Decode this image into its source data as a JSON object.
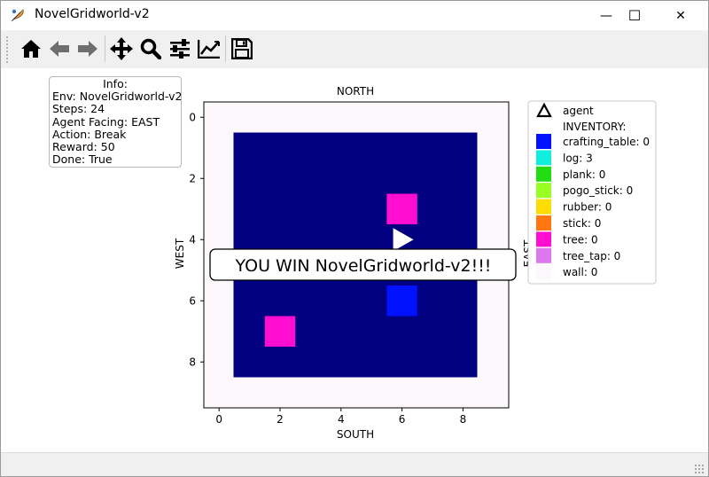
{
  "window": {
    "title": "NovelGridworld-v2",
    "controls": {
      "minimize": "—",
      "maximize": "☐",
      "close": "✕"
    }
  },
  "toolbar": {
    "tools": [
      "home-icon",
      "back-arrow-icon",
      "forward-arrow-icon",
      "pan-icon",
      "zoom-icon",
      "configure-subplots-icon",
      "edit-axis-icon",
      "save-icon"
    ]
  },
  "info": {
    "header": "Info:",
    "lines": [
      "Env: NovelGridworld-v2",
      "Steps: 24",
      "Agent Facing: EAST",
      "Action: Break",
      "Reward: 50",
      "Done: True"
    ]
  },
  "plot": {
    "title_top": "NORTH",
    "xlabel": "SOUTH",
    "ylabel": "WEST",
    "right_label": "EAST",
    "x_ticks": [
      "0",
      "2",
      "4",
      "6",
      "8"
    ],
    "y_ticks": [
      "0",
      "2",
      "4",
      "6",
      "8"
    ],
    "win_message": "YOU WIN NovelGridworld-v2!!!"
  },
  "chart_data": {
    "type": "heatmap",
    "grid_size": [
      10,
      10
    ],
    "xlim": [
      -0.5,
      9.5
    ],
    "ylim": [
      9.5,
      -0.5
    ],
    "colors": {
      "wall": "#fcf8fc",
      "floor": "#000080",
      "crafting_table": "#0011ff",
      "tree": "#ff0dd0",
      "agent": "#ffffff"
    },
    "cells": [
      {
        "item": "tree",
        "row": 3,
        "col": 6
      },
      {
        "item": "crafting_table",
        "row": 6,
        "col": 6
      },
      {
        "item": "tree",
        "row": 7,
        "col": 2
      }
    ],
    "agent": {
      "row": 4,
      "col": 6,
      "facing": "EAST"
    }
  },
  "legend": {
    "agent_label": "agent",
    "inventory_header": "INVENTORY:",
    "items": [
      {
        "label": "crafting_table: 0",
        "color": "#0011ff"
      },
      {
        "label": "log: 3",
        "color": "#11eedd"
      },
      {
        "label": "plank: 0",
        "color": "#22dd11"
      },
      {
        "label": "pogo_stick: 0",
        "color": "#99ff22"
      },
      {
        "label": "rubber: 0",
        "color": "#ffdd00"
      },
      {
        "label": "stick: 0",
        "color": "#ff7711"
      },
      {
        "label": "tree: 0",
        "color": "#ff0dd0"
      },
      {
        "label": "tree_tap: 0",
        "color": "#dd77ee"
      },
      {
        "label": "wall: 0",
        "color": "#fcf8fc"
      }
    ]
  }
}
